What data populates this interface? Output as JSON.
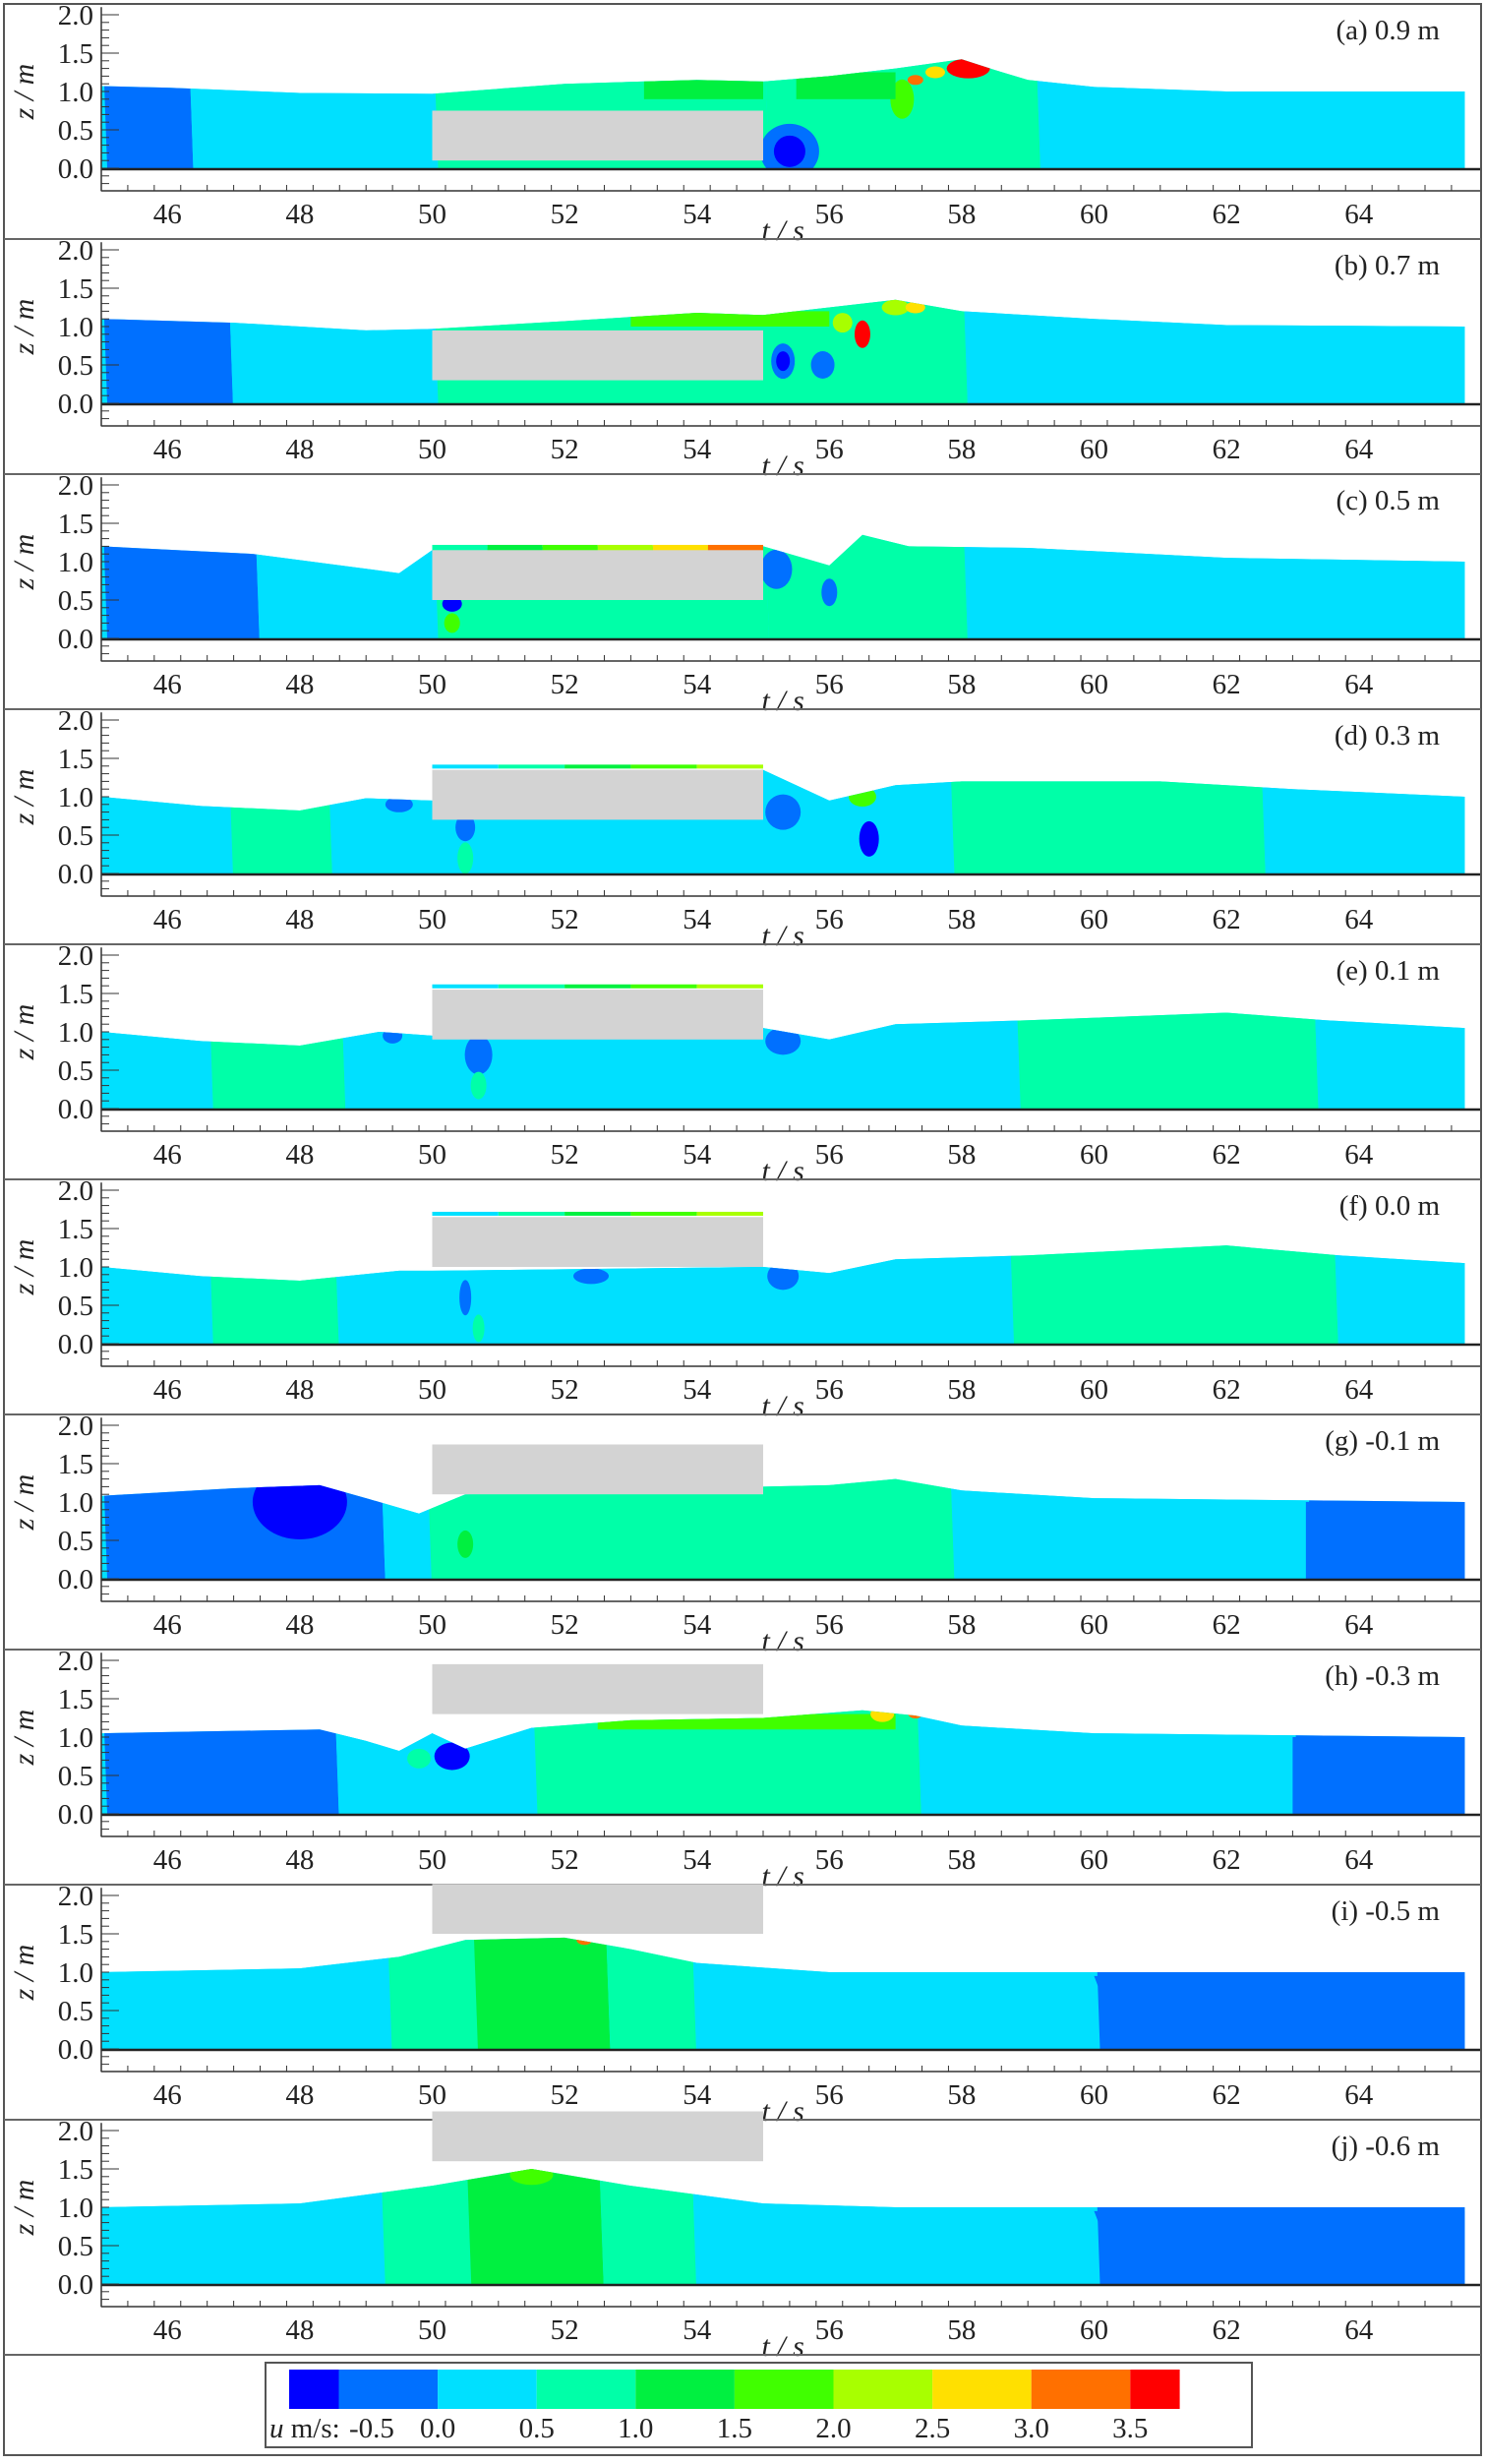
{
  "chart_data": {
    "type": "heatmap",
    "description": "Ten stacked contour panels of horizontal velocity u (m/s) in a z–t plane around a submerged/emergent rectangular block; panels differ by block submergence",
    "xlabel": "t / s",
    "ylabel": "z / m",
    "xlim": [
      45,
      65.6
    ],
    "ylim": [
      -0.3,
      2.1
    ],
    "xticks": [
      46,
      48,
      50,
      52,
      54,
      56,
      58,
      60,
      62,
      64
    ],
    "yticks": [
      0.0,
      0.5,
      1.0,
      1.5,
      2.0
    ],
    "grid": false,
    "colorbar": {
      "label": "u m/s:",
      "levels": [
        -0.5,
        0.0,
        0.5,
        1.0,
        1.5,
        2.0,
        2.5,
        3.0,
        3.5
      ],
      "tick_labels": [
        "-0.5",
        "0.0",
        "0.5",
        "1.0",
        "1.5",
        "2.0",
        "2.5",
        "3.0",
        "3.5"
      ],
      "colors": [
        "#0000ff",
        "#0070ff",
        "#00e0ff",
        "#00ffa8",
        "#00f040",
        "#40ff00",
        "#a8ff00",
        "#ffe000",
        "#ff7000",
        "#ff0000"
      ],
      "position": "bottom"
    },
    "block": {
      "t_start": 50,
      "t_end": 55,
      "color": "#d3d3d3"
    },
    "panels": [
      {
        "id": "a",
        "label": "(a) 0.9 m",
        "submergence_m": 0.9,
        "block_z": [
          0.1,
          0.75
        ],
        "surface": [
          [
            45,
            1.07
          ],
          [
            46,
            1.05
          ],
          [
            48,
            0.98
          ],
          [
            50,
            0.97
          ],
          [
            52,
            1.1
          ],
          [
            54,
            1.15
          ],
          [
            55,
            1.13
          ],
          [
            56,
            1.2
          ],
          [
            57,
            1.3
          ],
          [
            58,
            1.42
          ],
          [
            58.5,
            1.28
          ],
          [
            59,
            1.15
          ],
          [
            60,
            1.06
          ],
          [
            62,
            1.0
          ],
          [
            65.6,
            1.0
          ]
        ],
        "zones": [
          {
            "t": [
              45,
              46.3
            ],
            "u": "-0.5..0"
          },
          {
            "t": [
              46.3,
              50
            ],
            "u": "0..0.5"
          },
          {
            "t": [
              50,
              55
            ],
            "u": "0.5..1.5"
          },
          {
            "t": [
              55,
              59.1
            ],
            "u": "0.5..1.5, peak >3.0 near t=58"
          },
          {
            "t": [
              59.1,
              65.6
            ],
            "u": "0..0.5"
          }
        ]
      },
      {
        "id": "b",
        "label": "(b) 0.7 m",
        "submergence_m": 0.7,
        "block_z": [
          0.3,
          0.95
        ],
        "surface": [
          [
            45,
            1.1
          ],
          [
            47,
            1.05
          ],
          [
            49,
            0.95
          ],
          [
            50,
            0.97
          ],
          [
            52,
            1.07
          ],
          [
            54,
            1.18
          ],
          [
            55,
            1.15
          ],
          [
            56,
            1.25
          ],
          [
            57,
            1.35
          ],
          [
            58,
            1.2
          ],
          [
            60,
            1.1
          ],
          [
            62,
            1.02
          ],
          [
            65.6,
            1.0
          ]
        ],
        "zones": [
          {
            "t": [
              45,
              46.9
            ],
            "u": "-0.5..0"
          },
          {
            "t": [
              46.9,
              50
            ],
            "u": "0..0.5"
          },
          {
            "t": [
              50,
              58
            ],
            "u": "0.5..2.5, peak >3.5 near t=56.5"
          },
          {
            "t": [
              58,
              65.6
            ],
            "u": "0..0.5"
          }
        ]
      },
      {
        "id": "c",
        "label": "(c) 0.5 m",
        "submergence_m": 0.5,
        "block_z": [
          0.5,
          1.15
        ],
        "surface": [
          [
            45,
            1.2
          ],
          [
            47.3,
            1.1
          ],
          [
            49.5,
            0.85
          ],
          [
            50,
            1.15
          ],
          [
            52,
            1.2
          ],
          [
            55,
            1.2
          ],
          [
            56,
            0.95
          ],
          [
            56.5,
            1.35
          ],
          [
            57.2,
            1.2
          ],
          [
            59,
            1.18
          ],
          [
            62,
            1.05
          ],
          [
            65.6,
            1.0
          ]
        ],
        "zones": [
          {
            "t": [
              45,
              47.3
            ],
            "u": "-0.5..0"
          },
          {
            "t": [
              47.3,
              50
            ],
            "u": "0..0.5"
          },
          {
            "t": [
              50,
              55
            ],
            "u": "0.5..1.0 below, jet 1.5..>3.5 above"
          },
          {
            "t": [
              55,
              58
            ],
            "u": "0.5..1.5"
          },
          {
            "t": [
              58,
              65.6
            ],
            "u": "0..0.5"
          }
        ]
      },
      {
        "id": "d",
        "label": "(d) 0.3 m",
        "submergence_m": 0.3,
        "block_z": [
          0.7,
          1.35
        ],
        "surface": [
          [
            45,
            1.0
          ],
          [
            46.5,
            0.88
          ],
          [
            48,
            0.82
          ],
          [
            49,
            0.98
          ],
          [
            50,
            0.95
          ],
          [
            55,
            1.35
          ],
          [
            56,
            0.95
          ],
          [
            57,
            1.15
          ],
          [
            58,
            1.2
          ],
          [
            61,
            1.2
          ],
          [
            63,
            1.1
          ],
          [
            65.6,
            1.0
          ]
        ],
        "zones": [
          {
            "t": [
              45,
              46.9
            ],
            "u": "0..0.5"
          },
          {
            "t": [
              46.9,
              48.4
            ],
            "u": "0.5..1.0"
          },
          {
            "t": [
              48.4,
              57.8
            ],
            "u": "0..0.5"
          },
          {
            "t": [
              57.8,
              62.5
            ],
            "u": "0.5..1.0"
          },
          {
            "t": [
              62.5,
              65.6
            ],
            "u": "0..0.5"
          }
        ]
      },
      {
        "id": "e",
        "label": "(e) 0.1 m",
        "submergence_m": 0.1,
        "block_z": [
          0.9,
          1.55
        ],
        "surface": [
          [
            45,
            1.0
          ],
          [
            46.5,
            0.88
          ],
          [
            48,
            0.82
          ],
          [
            49.2,
            1.0
          ],
          [
            50,
            0.95
          ],
          [
            55,
            1.05
          ],
          [
            56,
            0.9
          ],
          [
            57,
            1.1
          ],
          [
            59,
            1.15
          ],
          [
            62,
            1.25
          ],
          [
            63.5,
            1.15
          ],
          [
            65.6,
            1.05
          ]
        ],
        "zones": [
          {
            "t": [
              45,
              46.6
            ],
            "u": "0..0.5"
          },
          {
            "t": [
              46.6,
              48.6
            ],
            "u": "0.5..1.0"
          },
          {
            "t": [
              48.6,
              58.8
            ],
            "u": "0..0.5"
          },
          {
            "t": [
              58.8,
              63.3
            ],
            "u": "0.5..1.0"
          },
          {
            "t": [
              63.3,
              65.6
            ],
            "u": "0..0.5"
          }
        ]
      },
      {
        "id": "f",
        "label": "(f) 0.0 m",
        "submergence_m": 0.0,
        "block_z": [
          1.0,
          1.65
        ],
        "surface": [
          [
            45,
            1.0
          ],
          [
            46.5,
            0.88
          ],
          [
            48,
            0.82
          ],
          [
            49.5,
            0.95
          ],
          [
            50,
            0.95
          ],
          [
            55,
            1.0
          ],
          [
            56,
            0.92
          ],
          [
            57,
            1.1
          ],
          [
            59,
            1.15
          ],
          [
            62,
            1.28
          ],
          [
            63.7,
            1.15
          ],
          [
            65.6,
            1.05
          ]
        ],
        "zones": [
          {
            "t": [
              45,
              46.6
            ],
            "u": "0..0.5"
          },
          {
            "t": [
              46.6,
              48.5
            ],
            "u": "0.5..1.0"
          },
          {
            "t": [
              48.5,
              58.7
            ],
            "u": "0..0.5"
          },
          {
            "t": [
              58.7,
              63.6
            ],
            "u": "0.5..1.0"
          },
          {
            "t": [
              63.6,
              65.6
            ],
            "u": "0..0.5"
          }
        ]
      },
      {
        "id": "g",
        "label": "(g) -0.1 m",
        "submergence_m": -0.1,
        "block_z": [
          1.1,
          1.75
        ],
        "surface": [
          [
            45,
            1.08
          ],
          [
            47,
            1.18
          ],
          [
            48.3,
            1.22
          ],
          [
            49,
            1.05
          ],
          [
            49.8,
            0.85
          ],
          [
            50.5,
            1.1
          ],
          [
            55,
            1.2
          ],
          [
            56,
            1.22
          ],
          [
            57,
            1.3
          ],
          [
            58,
            1.15
          ],
          [
            60,
            1.05
          ],
          [
            65.6,
            1.0
          ]
        ],
        "zones": [
          {
            "t": [
              45,
              49.2
            ],
            "u": "-0.5..0, core < -0.5 near t=48"
          },
          {
            "t": [
              49.2,
              49.9
            ],
            "u": "0..0.5"
          },
          {
            "t": [
              49.9,
              57.8
            ],
            "u": "0.5..1.0"
          },
          {
            "t": [
              57.8,
              63.2
            ],
            "u": "0..0.5"
          },
          {
            "t": [
              63.2,
              65.6
            ],
            "u": "-0.5..0"
          }
        ]
      },
      {
        "id": "h",
        "label": "(h) -0.3 m",
        "submergence_m": -0.3,
        "block_z": [
          1.3,
          1.95
        ],
        "surface": [
          [
            45,
            1.05
          ],
          [
            48.3,
            1.1
          ],
          [
            49,
            0.95
          ],
          [
            49.5,
            0.82
          ],
          [
            50,
            1.05
          ],
          [
            50.5,
            0.85
          ],
          [
            51.5,
            1.12
          ],
          [
            53,
            1.22
          ],
          [
            55,
            1.25
          ],
          [
            56.5,
            1.35
          ],
          [
            57.3,
            1.28
          ],
          [
            58,
            1.15
          ],
          [
            60,
            1.05
          ],
          [
            65.6,
            1.0
          ]
        ],
        "zones": [
          {
            "t": [
              45,
              48.5
            ],
            "u": "-0.5..0"
          },
          {
            "t": [
              48.5,
              51.5
            ],
            "u": "0..0.5"
          },
          {
            "t": [
              51.5,
              57.3
            ],
            "u": "0.5..1.5, crest up to 3.0"
          },
          {
            "t": [
              57.3,
              63.0
            ],
            "u": "0..0.5"
          },
          {
            "t": [
              63.0,
              65.6
            ],
            "u": "-0.5..0"
          }
        ]
      },
      {
        "id": "i",
        "label": "(i) -0.5 m",
        "submergence_m": -0.5,
        "block_z": [
          1.5,
          2.15
        ],
        "surface": [
          [
            45,
            1.0
          ],
          [
            48,
            1.05
          ],
          [
            49.5,
            1.2
          ],
          [
            50.5,
            1.42
          ],
          [
            52,
            1.45
          ],
          [
            53,
            1.3
          ],
          [
            54,
            1.12
          ],
          [
            56,
            1.0
          ],
          [
            65.6,
            1.0
          ]
        ],
        "zones": [
          {
            "t": [
              45,
              49.3
            ],
            "u": "0..0.5"
          },
          {
            "t": [
              49.3,
              50.6
            ],
            "u": "0.5..1.0"
          },
          {
            "t": [
              50.6,
              52.6
            ],
            "u": "1.0..1.5"
          },
          {
            "t": [
              52.6,
              53.9
            ],
            "u": "0.5..1.0"
          },
          {
            "t": [
              53.9,
              60
            ],
            "u": "0..0.5"
          },
          {
            "t": [
              60,
              65.6
            ],
            "u": "-0.5..0 patches"
          }
        ]
      },
      {
        "id": "j",
        "label": "(j) -0.6 m",
        "submergence_m": -0.6,
        "block_z": [
          1.6,
          2.25
        ],
        "surface": [
          [
            45,
            1.0
          ],
          [
            48,
            1.05
          ],
          [
            50,
            1.28
          ],
          [
            51.5,
            1.5
          ],
          [
            53,
            1.28
          ],
          [
            55,
            1.05
          ],
          [
            57,
            1.0
          ],
          [
            65.6,
            1.0
          ]
        ],
        "zones": [
          {
            "t": [
              45,
              49.2
            ],
            "u": "0..0.5"
          },
          {
            "t": [
              49.2,
              50.5
            ],
            "u": "0.5..1.0"
          },
          {
            "t": [
              50.5,
              52.5
            ],
            "u": "1.0..1.5"
          },
          {
            "t": [
              52.5,
              53.9
            ],
            "u": "0.5..1.0"
          },
          {
            "t": [
              53.9,
              60
            ],
            "u": "0..0.5"
          },
          {
            "t": [
              60,
              65.6
            ],
            "u": "-0.5..0 patches"
          }
        ]
      }
    ]
  }
}
